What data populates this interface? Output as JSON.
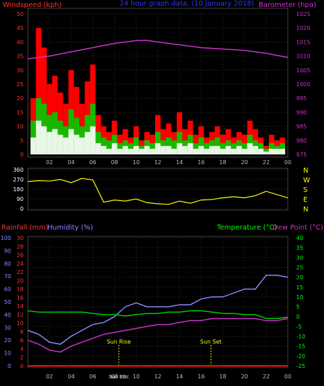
{
  "chart_data": [
    {
      "type": "line",
      "title": "24 hour graph data, (10 January 2018)",
      "left_axis_label": "Windspeed (kph)",
      "right_axis_label": "Barometer (hpa)",
      "ylim_left": [
        0,
        50
      ],
      "ylim_right": [
        975,
        1025
      ],
      "left_ticks": [
        0,
        5,
        10,
        15,
        20,
        25,
        30,
        35,
        40,
        45,
        50
      ],
      "right_ticks": [
        975,
        980,
        985,
        990,
        995,
        1000,
        1005,
        1010,
        1015,
        1020,
        1025
      ],
      "x_ticks": [
        "02",
        "04",
        "06",
        "08",
        "10",
        "12",
        "14",
        "16",
        "18",
        "20",
        "22",
        "00"
      ],
      "grid": true,
      "colors": {
        "gust": "#ff0000",
        "speed": "#00cc00",
        "average": "#ffffff",
        "barometer": "#cc33cc",
        "axis_left": "#ff3333",
        "axis_right": "#cc33cc",
        "title": "#3333ff"
      },
      "series": [
        {
          "key": "gust",
          "x": [
            0.5,
            1,
            1.5,
            2,
            2.5,
            3,
            3.5,
            4,
            4.5,
            5,
            5.5,
            6,
            6.5,
            7,
            7.5,
            8,
            8.5,
            9,
            9.5,
            10,
            10.5,
            11,
            11.5,
            12,
            12.5,
            13,
            13.5,
            14,
            14.5,
            15,
            15.5,
            16,
            16.5,
            17,
            17.5,
            18,
            18.5,
            19,
            19.5,
            20,
            20.5,
            21,
            21.5,
            22,
            22.5,
            23,
            23.5
          ],
          "values": [
            20,
            45,
            38,
            25,
            28,
            22,
            18,
            30,
            24,
            18,
            26,
            32,
            14,
            10,
            8,
            12,
            7,
            9,
            6,
            10,
            5,
            8,
            7,
            14,
            9,
            11,
            8,
            15,
            9,
            12,
            7,
            10,
            6,
            8,
            10,
            7,
            9,
            6,
            8,
            7,
            12,
            9,
            6,
            3,
            7,
            5,
            6
          ]
        },
        {
          "key": "speed",
          "x": [
            0.5,
            1,
            1.5,
            2,
            2.5,
            3,
            3.5,
            4,
            4.5,
            5,
            5.5,
            6,
            6.5,
            7,
            7.5,
            8,
            8.5,
            9,
            9.5,
            10,
            10.5,
            11,
            11.5,
            12,
            12.5,
            13,
            13.5,
            14,
            14.5,
            15,
            15.5,
            16,
            16.5,
            17,
            17.5,
            18,
            18.5,
            19,
            19.5,
            20,
            20.5,
            21,
            21.5,
            22,
            22.5,
            23,
            23.5
          ],
          "values": [
            12,
            20,
            18,
            14,
            15,
            12,
            10,
            16,
            13,
            10,
            14,
            18,
            8,
            6,
            5,
            7,
            4,
            5,
            4,
            6,
            3,
            5,
            4,
            8,
            5,
            6,
            5,
            8,
            5,
            7,
            4,
            6,
            4,
            5,
            6,
            4,
            5,
            4,
            5,
            4,
            7,
            5,
            4,
            2,
            4,
            3,
            4
          ]
        },
        {
          "key": "average",
          "x": [
            0.5,
            1,
            1.5,
            2,
            2.5,
            3,
            3.5,
            4,
            4.5,
            5,
            5.5,
            6,
            6.5,
            7,
            7.5,
            8,
            8.5,
            9,
            9.5,
            10,
            10.5,
            11,
            11.5,
            12,
            12.5,
            13,
            13.5,
            14,
            14.5,
            15,
            15.5,
            16,
            16.5,
            17,
            17.5,
            18,
            18.5,
            19,
            19.5,
            20,
            20.5,
            21,
            21.5,
            22,
            22.5,
            23,
            23.5
          ],
          "values": [
            6,
            12,
            10,
            8,
            9,
            7,
            6,
            9,
            7,
            6,
            8,
            10,
            4,
            3,
            2,
            4,
            2,
            3,
            2,
            3,
            2,
            3,
            2,
            4,
            3,
            3,
            2,
            4,
            3,
            4,
            2,
            3,
            2,
            3,
            3,
            2,
            3,
            2,
            3,
            2,
            4,
            3,
            2,
            1,
            2,
            2,
            2
          ]
        },
        {
          "key": "barometer",
          "x": [
            0,
            2,
            4,
            6,
            8,
            10,
            11,
            12,
            14,
            16,
            18,
            20,
            22,
            24
          ],
          "values": [
            1009,
            1010,
            1011.5,
            1013,
            1014.5,
            1015.5,
            1015.6,
            1015,
            1014,
            1013,
            1012.5,
            1012,
            1011,
            1009.5
          ]
        }
      ]
    },
    {
      "type": "line",
      "title": "",
      "left_ticks": [
        0,
        90,
        180,
        270,
        360
      ],
      "ylim": [
        0,
        360
      ],
      "direction_labels": [
        "N",
        "W",
        "S",
        "E",
        "N"
      ],
      "colors": {
        "direction": "#ffff00"
      },
      "series": [
        {
          "key": "direction",
          "x": [
            0,
            1,
            2,
            3,
            4,
            5,
            6,
            7,
            8,
            9,
            10,
            11,
            12,
            13,
            14,
            15,
            16,
            17,
            18,
            19,
            20,
            21,
            22,
            23,
            24
          ],
          "values": [
            250,
            260,
            255,
            270,
            240,
            280,
            265,
            60,
            80,
            70,
            90,
            55,
            45,
            40,
            70,
            50,
            80,
            85,
            100,
            110,
            100,
            120,
            160,
            130,
            100
          ]
        }
      ]
    },
    {
      "type": "line",
      "title": "",
      "rain_label": "Rainfall (mm)",
      "humidity_label": "Humidity (%)",
      "temperature_label": "Temperature (°C)",
      "dewpoint_label": "Dew Point (°C)",
      "humidity_ticks": [
        0,
        10,
        20,
        30,
        40,
        50,
        60,
        70,
        80,
        90,
        100
      ],
      "rain_ticks": [
        0,
        2,
        4,
        6,
        8,
        10,
        12,
        14,
        16,
        18,
        20,
        22,
        24,
        26,
        28,
        30
      ],
      "temp_ticks": [
        -25,
        -20,
        -15,
        -10,
        -5,
        0,
        5,
        10,
        15,
        20,
        25,
        30,
        35,
        40
      ],
      "temp_ylim": [
        -25,
        40
      ],
      "x_ticks": [
        "02",
        "04",
        "06",
        "08",
        "10",
        "12",
        "14",
        "16",
        "18",
        "20",
        "22",
        "00"
      ],
      "annotations": [
        {
          "text": "Sun Rise",
          "x": 8.4
        },
        {
          "text": "Sun Set",
          "x": 16.9
        },
        {
          "text": "Sun BBc",
          "x": 8.4
        }
      ],
      "colors": {
        "temperature": "#8888ff",
        "dewpoint": "#cc33cc",
        "humidity": "#00cc00",
        "rain": "#ff0000",
        "temp_axis": "#00ff00",
        "humidity_axis": "#8888ff",
        "rain_axis": "#ff3333"
      },
      "series": [
        {
          "key": "temperature",
          "x": [
            0,
            1,
            2,
            3,
            4,
            5,
            6,
            7,
            8,
            9,
            10,
            11,
            12,
            13,
            14,
            15,
            16,
            17,
            18,
            19,
            20,
            21,
            22,
            23,
            24
          ],
          "values": [
            -7,
            -9,
            -13,
            -14,
            -10,
            -7,
            -4,
            -3,
            0,
            5,
            7,
            5,
            5,
            5,
            6,
            6,
            9,
            10,
            10,
            12,
            14,
            14,
            21,
            21,
            20
          ]
        },
        {
          "key": "dewpoint",
          "x": [
            0,
            1,
            2,
            3,
            4,
            5,
            6,
            7,
            8,
            9,
            10,
            11,
            12,
            13,
            14,
            15,
            16,
            17,
            18,
            19,
            20,
            21,
            22,
            23,
            24
          ],
          "values": [
            -12,
            -14,
            -17,
            -18,
            -15,
            -13,
            -11,
            -9,
            -8,
            -7,
            -6,
            -5,
            -4,
            -4,
            -3,
            -2,
            -2,
            -1,
            -1,
            -1,
            -1,
            -1,
            -2,
            -2,
            -1
          ]
        },
        {
          "key": "humidity",
          "x": [
            0,
            1,
            2,
            3,
            4,
            5,
            6,
            7,
            8,
            9,
            10,
            11,
            12,
            13,
            14,
            15,
            16,
            17,
            18,
            19,
            20,
            21,
            22,
            23,
            24
          ],
          "values": [
            43,
            42,
            42,
            42,
            42,
            42,
            41,
            40,
            40,
            39,
            40,
            41,
            41,
            42,
            42,
            43,
            43,
            42,
            41,
            41,
            40,
            40,
            37,
            37,
            38
          ]
        },
        {
          "key": "rain",
          "x": [
            0,
            24
          ],
          "values": [
            0,
            0
          ]
        }
      ]
    }
  ]
}
